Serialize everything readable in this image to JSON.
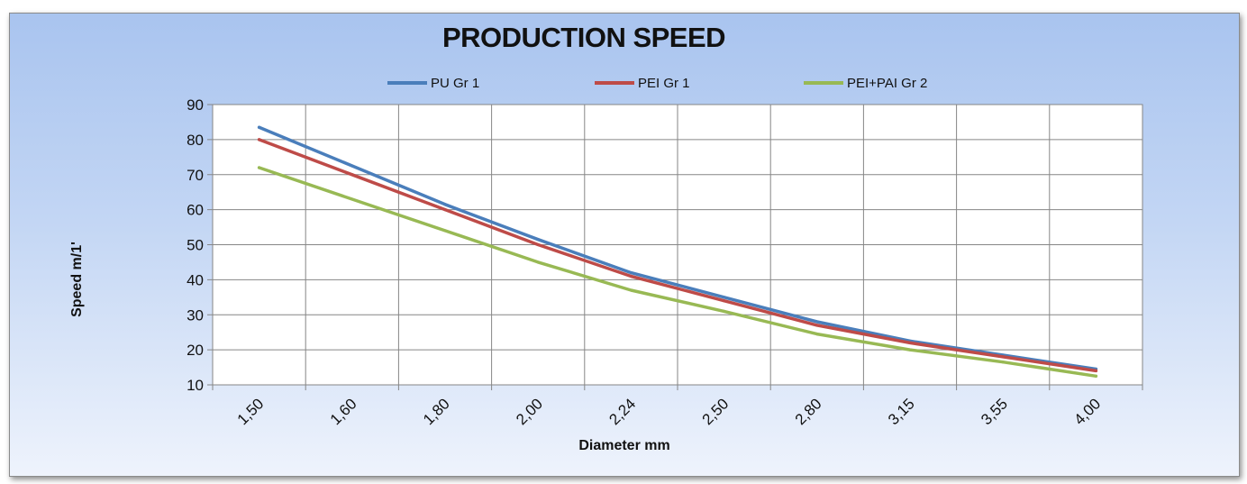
{
  "chart_data": {
    "type": "line",
    "title": "PRODUCTION SPEED",
    "xlabel": "Diameter mm",
    "ylabel": "Speed m/1'",
    "categories": [
      "1,50",
      "1,60",
      "1,80",
      "2,00",
      "2,24",
      "2,50",
      "2,80",
      "3,15",
      "3,55",
      "4,00"
    ],
    "ylim": [
      10,
      90
    ],
    "yticks": [
      "10",
      "20",
      "30",
      "40",
      "50",
      "60",
      "70",
      "80",
      "90"
    ],
    "grid": true,
    "legend_position": "top",
    "series": [
      {
        "name": "PU Gr 1",
        "color": "#4a7ebb",
        "values": [
          83.5,
          72.5,
          61.5,
          51.5,
          42,
          35,
          28,
          22.5,
          18.5,
          14.5
        ]
      },
      {
        "name": "PEI Gr 1",
        "color": "#be4b48",
        "values": [
          80,
          70,
          60,
          50,
          41,
          34,
          27,
          22,
          18,
          14
        ]
      },
      {
        "name": "PEI+PAI Gr 2",
        "color": "#98b954",
        "values": [
          72,
          63,
          54,
          45,
          37,
          31,
          24.5,
          20,
          16.5,
          12.5
        ]
      }
    ]
  }
}
